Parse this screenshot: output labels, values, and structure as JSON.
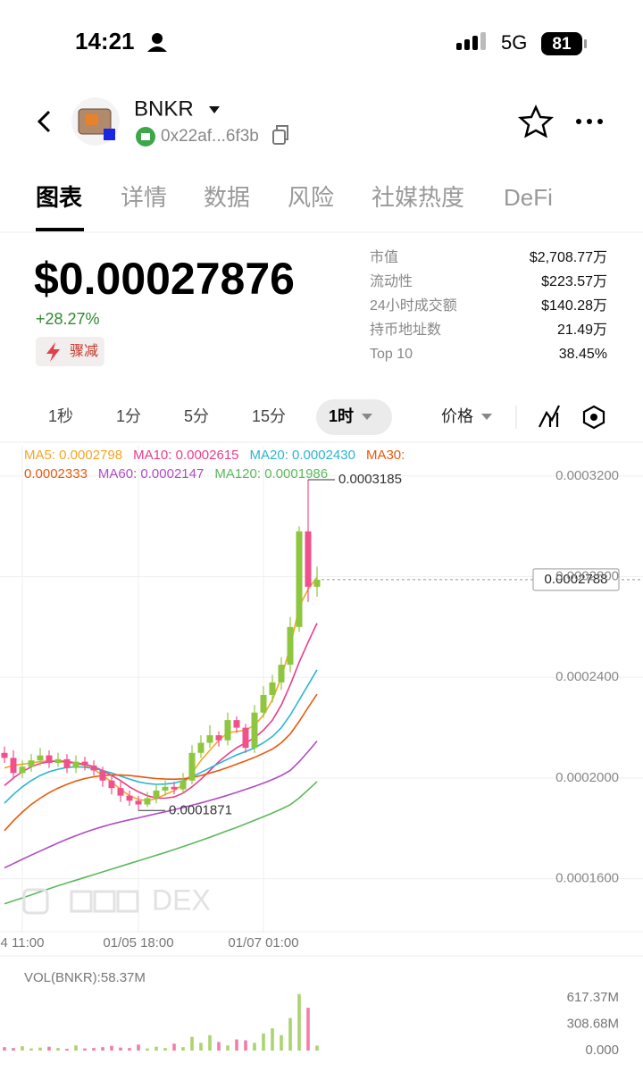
{
  "status_bar": {
    "time": "14:21",
    "network": "5G",
    "battery": "81"
  },
  "header": {
    "token": "BNKR",
    "address": "0x22af...6f3b"
  },
  "tabs": [
    "图表",
    "详情",
    "数据",
    "风险",
    "社媒热度",
    "DeFi"
  ],
  "price": {
    "value": "$0.00027876",
    "change": "+28.27%",
    "tag": "骤减"
  },
  "stats": [
    {
      "label": "市值",
      "value": "$2,708.77万"
    },
    {
      "label": "流动性",
      "value": "$223.57万"
    },
    {
      "label": "24小时成交额",
      "value": "$140.28万"
    },
    {
      "label": "持币地址数",
      "value": "21.49万"
    },
    {
      "label": "Top 10",
      "value": "38.45%"
    }
  ],
  "intervals": [
    "1秒",
    "1分",
    "5分",
    "15分",
    "1时"
  ],
  "price_mode": "价格",
  "chart_data": [
    {
      "type": "candlestick",
      "categories": [
        null,
        null,
        "4 11:00",
        null,
        null,
        null,
        null,
        null,
        null,
        null,
        null,
        null,
        null,
        null,
        null,
        "01/05 18:00",
        null,
        null,
        null,
        null,
        null,
        null,
        null,
        null,
        null,
        null,
        null,
        null,
        null,
        "01/07 01:00",
        null,
        null,
        null,
        null,
        null,
        null
      ],
      "open": [
        0.00021,
        0.000208,
        0.000202,
        0.0002045,
        0.000207,
        0.000209,
        0.000206,
        0.0002075,
        0.000204,
        0.0002065,
        0.000205,
        0.000203,
        0.000199,
        0.000196,
        0.000193,
        0.000191,
        0.0001895,
        0.000192,
        0.000195,
        0.0001965,
        0.0001955,
        0.000199,
        0.00021,
        0.000214,
        0.000217,
        0.000215,
        0.000223,
        0.00022,
        0.000212,
        0.000226,
        0.000233,
        0.000238,
        0.000245,
        0.00026,
        0.000298,
        0.000276
      ],
      "high": [
        0.0002125,
        0.000211,
        0.000207,
        0.0002095,
        0.000212,
        0.000211,
        0.00021,
        0.0002095,
        0.000209,
        0.0002085,
        0.000207,
        0.0002045,
        0.000201,
        0.0001985,
        0.000195,
        0.000193,
        0.0001945,
        0.0001975,
        0.000199,
        0.0001985,
        0.000202,
        0.000213,
        0.000217,
        0.000221,
        0.0002185,
        0.000226,
        0.0002245,
        0.0002215,
        0.000229,
        0.0002365,
        0.000241,
        0.000248,
        0.000264,
        0.0003,
        0.0003185,
        0.000284
      ],
      "low": [
        0.000206,
        0.0001995,
        0.0002,
        0.0002025,
        0.000205,
        0.000204,
        0.0002045,
        0.000202,
        0.000202,
        0.000203,
        0.000201,
        0.0001965,
        0.0001935,
        0.0001905,
        0.000189,
        0.0001871,
        0.0001885,
        0.00019,
        0.000193,
        0.0001935,
        0.000194,
        0.0001975,
        0.000208,
        0.000212,
        0.0002125,
        0.000213,
        0.000218,
        0.00021,
        0.00021,
        0.000224,
        0.00023,
        0.000235,
        0.000242,
        0.000258,
        0.00027,
        0.000272
      ],
      "close": [
        0.000208,
        0.000202,
        0.0002045,
        0.000207,
        0.000209,
        0.000206,
        0.0002075,
        0.000204,
        0.0002065,
        0.000205,
        0.000203,
        0.000199,
        0.000196,
        0.000193,
        0.000191,
        0.0001895,
        0.000192,
        0.000195,
        0.0001965,
        0.0001955,
        0.000199,
        0.00021,
        0.000214,
        0.000217,
        0.000215,
        0.000223,
        0.00022,
        0.000212,
        0.000226,
        0.000233,
        0.000238,
        0.000245,
        0.00026,
        0.000298,
        0.000276,
        0.0002788
      ],
      "up_color": "#8dc63f",
      "down_color": "#f0508c",
      "series": [
        {
          "name": "MA5: 0.0002798",
          "color": "#f5a623",
          "values": [
            0.000204,
            0.000205,
            0.0002055,
            0.000206,
            0.0002065,
            0.0002068,
            0.0002066,
            0.0002062,
            0.0002058,
            0.000205,
            0.0002035,
            0.000201,
            0.0001985,
            0.0001955,
            0.000193,
            0.0001915,
            0.000191,
            0.0001918,
            0.0001935,
            0.000195,
            0.0001975,
            0.000202,
            0.000207,
            0.000211,
            0.000215,
            0.000218,
            0.0002185,
            0.000219,
            0.000221,
            0.000225,
            0.000231,
            0.00024,
            0.000252,
            0.000268,
            0.000275,
            0.0002798
          ]
        },
        {
          "name": "MA10: 0.0002615",
          "color": "#e83e8c",
          "values": [
            0.000197,
            0.0002,
            0.0002025,
            0.0002045,
            0.0002058,
            0.0002065,
            0.0002068,
            0.0002066,
            0.000206,
            0.0002055,
            0.0002045,
            0.000203,
            0.000201,
            0.000199,
            0.0001965,
            0.0001945,
            0.000193,
            0.000192,
            0.000192,
            0.0001925,
            0.000194,
            0.0001965,
            0.0001995,
            0.000203,
            0.0002065,
            0.0002095,
            0.000212,
            0.000214,
            0.000216,
            0.000219,
            0.000223,
            0.000229,
            0.000237,
            0.000246,
            0.000254,
            0.0002615
          ]
        },
        {
          "name": "MA20: 0.0002430",
          "color": "#2bb5d4",
          "values": [
            0.00019,
            0.0001935,
            0.0001965,
            0.000199,
            0.000201,
            0.0002025,
            0.0002035,
            0.0002042,
            0.0002045,
            0.0002043,
            0.0002038,
            0.000203,
            0.000202,
            0.0002008,
            0.0001996,
            0.0001985,
            0.0001978,
            0.0001975,
            0.0001976,
            0.000198,
            0.000199,
            0.0002005,
            0.0002022,
            0.000204,
            0.0002058,
            0.0002075,
            0.0002092,
            0.0002105,
            0.000212,
            0.000214,
            0.0002165,
            0.00022,
            0.000225,
            0.000231,
            0.000237,
            0.000243
          ]
        },
        {
          "name": "MA30: 0.0002333",
          "color": "#e8590c",
          "values": [
            0.0001791,
            0.000183,
            0.0001865,
            0.0001895,
            0.000192,
            0.0001942,
            0.000196,
            0.0001975,
            0.0001988,
            0.0001998,
            0.0002005,
            0.000201,
            0.0002012,
            0.0002012,
            0.000201,
            0.0002006,
            0.0002002,
            0.0001998,
            0.0001996,
            0.0001995,
            0.0001997,
            0.0002002,
            0.000201,
            0.000202,
            0.000203,
            0.0002042,
            0.0002055,
            0.0002068,
            0.0002082,
            0.0002098,
            0.0002115,
            0.000214,
            0.0002175,
            0.0002225,
            0.000228,
            0.0002333
          ]
        },
        {
          "name": "MA60: 0.0002147",
          "color": "#b04bc4",
          "values": [
            0.0001643,
            0.000166,
            0.0001677,
            0.0001694,
            0.000171,
            0.0001726,
            0.0001742,
            0.0001757,
            0.0001771,
            0.0001784,
            0.0001796,
            0.0001807,
            0.0001817,
            0.0001826,
            0.0001834,
            0.0001842,
            0.000185,
            0.0001858,
            0.0001866,
            0.0001874,
            0.0001883,
            0.0001892,
            0.0001901,
            0.0001911,
            0.0001921,
            0.0001932,
            0.0001943,
            0.0001955,
            0.0001967,
            0.000198,
            0.0001994,
            0.000201,
            0.000203,
            0.0002065,
            0.0002105,
            0.0002147
          ]
        },
        {
          "name": "MA120: 0.0001986",
          "color": "#5cb85c",
          "values": [
            0.00015,
            0.0001512,
            0.0001524,
            0.0001536,
            0.0001548,
            0.000156,
            0.0001572,
            0.0001583,
            0.0001594,
            0.0001605,
            0.0001616,
            0.0001627,
            0.0001638,
            0.0001649,
            0.000166,
            0.0001671,
            0.0001682,
            0.0001693,
            0.0001704,
            0.0001716,
            0.0001728,
            0.000174,
            0.0001752,
            0.0001765,
            0.0001778,
            0.0001791,
            0.0001804,
            0.0001818,
            0.0001832,
            0.0001846,
            0.0001861,
            0.0001877,
            0.0001894,
            0.0001921,
            0.0001953,
            0.0001986
          ]
        }
      ],
      "ylim": [
        0.00014,
        0.000332
      ],
      "yticks": [
        {
          "value": 0.00032,
          "label": "0.0003200"
        },
        {
          "value": 0.00028,
          "label": "0.0002800"
        },
        {
          "value": 0.00024,
          "label": "0.0002400"
        },
        {
          "value": 0.0002,
          "label": "0.0002000"
        },
        {
          "value": 0.00016,
          "label": "0.0001600"
        }
      ],
      "grid": true,
      "current_price": {
        "value": 0.0002788,
        "label": "0.0002788"
      },
      "annotations": [
        {
          "value": 0.0003185,
          "label": "0.0003185"
        },
        {
          "value": 0.0001871,
          "label": "0.0001871"
        }
      ],
      "watermark": "DEX"
    },
    {
      "type": "bar",
      "title": "VOL(BNKR):58.37M",
      "values": [
        40000000,
        30000000,
        50000000,
        25000000,
        35000000,
        45000000,
        30000000,
        20000000,
        60000000,
        25000000,
        30000000,
        40000000,
        55000000,
        35000000,
        30000000,
        70000000,
        25000000,
        45000000,
        30000000,
        80000000,
        40000000,
        160000000,
        90000000,
        180000000,
        100000000,
        60000000,
        130000000,
        120000000,
        90000000,
        200000000,
        260000000,
        180000000,
        380000000,
        660000000,
        500000000,
        58370000
      ],
      "ylim": [
        0,
        700000000
      ],
      "yticks": [
        {
          "value": 617370000,
          "label": "617.37M"
        },
        {
          "value": 308680000,
          "label": "308.68M"
        },
        {
          "value": 0,
          "label": "0.000"
        }
      ]
    }
  ]
}
